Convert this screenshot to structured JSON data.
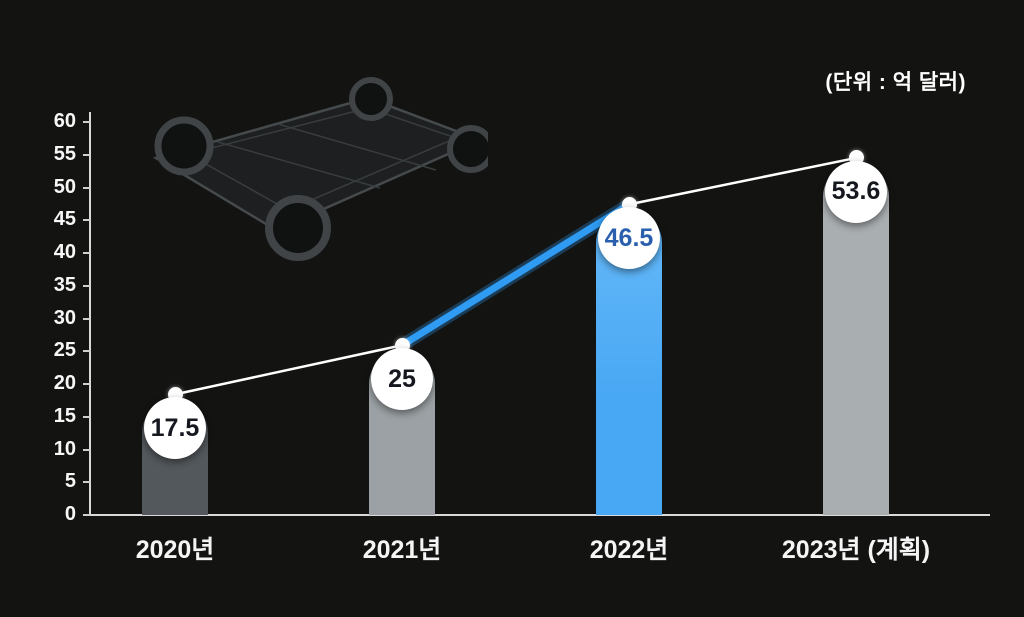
{
  "unit_label": "(단위 : 억 달러)",
  "chart_data": {
    "type": "bar",
    "title": "",
    "xlabel": "",
    "ylabel": "",
    "categories": [
      "2020년",
      "2021년",
      "2022년",
      "2023년 (계획)"
    ],
    "values": [
      17.5,
      25,
      46.5,
      53.6
    ],
    "value_labels": [
      "17.5",
      "25",
      "46.5",
      "53.6"
    ],
    "ylim": [
      0,
      60
    ],
    "yticks": [
      0,
      5,
      10,
      15,
      20,
      25,
      30,
      35,
      40,
      45,
      50,
      55,
      60
    ],
    "grid": false,
    "legend": "none",
    "highlight_index": 2,
    "bar_colors": [
      "#53585c",
      "#9ba1a4",
      "#49a8f4",
      "#a9aeb1"
    ],
    "value_text_colors": [
      "#16181f",
      "#16181f",
      "#2a5fae",
      "#16181f"
    ],
    "line_color": "#ffffff",
    "highlight_line_color": "#2f9bf2",
    "marker_color": "#ffffff"
  },
  "colors": {
    "background": "#131312",
    "axis": "#d9d9d9",
    "tick_label": "#f7f7f7",
    "category_label": "#f5f5f5"
  }
}
